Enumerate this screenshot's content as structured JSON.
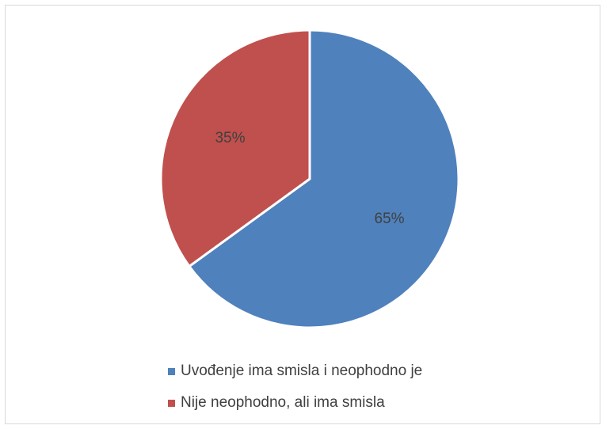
{
  "chart_data": {
    "type": "pie",
    "title": "",
    "categories": [
      "Uvođenje ima smisla i neophodno je",
      "Nije neophodno, ali ima smisla"
    ],
    "values": [
      65,
      35
    ],
    "data_labels": [
      "65%",
      "35%"
    ],
    "colors": [
      "#4f81bd",
      "#c0504d"
    ],
    "legend_position": "bottom",
    "start_angle": "12 o'clock, clockwise"
  }
}
